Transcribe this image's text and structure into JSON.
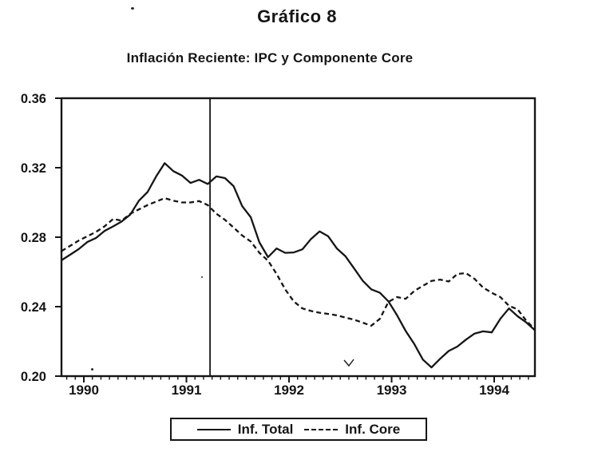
{
  "chart_data": {
    "type": "line",
    "title": "Gráfico 8",
    "subtitle": "Inflación Reciente: IPC y Componente Core",
    "x_axis": {
      "tick_values": [
        1990,
        1991,
        1992,
        1993,
        1994
      ],
      "tick_labels": [
        "1990",
        "1991",
        "1992",
        "1993",
        "1994"
      ],
      "range": [
        1989.782,
        1994.397
      ],
      "minor_ticks": "monthly"
    },
    "y_axis": {
      "tick_values": [
        0.36,
        0.32,
        0.28,
        0.24,
        0.2
      ],
      "tick_labels": [
        "0.36",
        "0.32",
        "0.28",
        "0.24",
        "0.20"
      ],
      "range": [
        0.2,
        0.36
      ]
    },
    "x_start": 1989.782,
    "x_step": 0.08388,
    "event_line_x": 1991.23,
    "grid": false,
    "legend_position": "bottom",
    "series": [
      {
        "name": "Inf. Total",
        "style": "solid",
        "values": [
          0.2667,
          0.2699,
          0.2731,
          0.2772,
          0.2795,
          0.2836,
          0.2862,
          0.289,
          0.293,
          0.301,
          0.306,
          0.315,
          0.3226,
          0.318,
          0.3155,
          0.3112,
          0.313,
          0.3106,
          0.315,
          0.314,
          0.3094,
          0.2979,
          0.2915,
          0.277,
          0.2685,
          0.2735,
          0.271,
          0.2712,
          0.273,
          0.279,
          0.2833,
          0.2805,
          0.2735,
          0.269,
          0.262,
          0.255,
          0.25,
          0.248,
          0.243,
          0.235,
          0.226,
          0.2185,
          0.2095,
          0.205,
          0.21,
          0.2145,
          0.217,
          0.221,
          0.2245,
          0.2258,
          0.2252,
          0.233,
          0.239,
          0.2345,
          0.231,
          0.2265
        ]
      },
      {
        "name": "Inf. Core",
        "style": "dashed",
        "values": [
          0.272,
          0.275,
          0.278,
          0.2805,
          0.283,
          0.2862,
          0.2905,
          0.2895,
          0.2935,
          0.296,
          0.2985,
          0.3005,
          0.3025,
          0.301,
          0.3,
          0.3,
          0.3008,
          0.2985,
          0.2935,
          0.29,
          0.2855,
          0.281,
          0.2775,
          0.271,
          0.2665,
          0.2588,
          0.25,
          0.243,
          0.239,
          0.2375,
          0.2365,
          0.2358,
          0.235,
          0.2337,
          0.2325,
          0.2308,
          0.229,
          0.233,
          0.2428,
          0.2455,
          0.2445,
          0.249,
          0.252,
          0.2548,
          0.2556,
          0.2545,
          0.2588,
          0.2593,
          0.256,
          0.251,
          0.248,
          0.2455,
          0.2405,
          0.2385,
          0.232,
          0.227
        ]
      }
    ]
  }
}
